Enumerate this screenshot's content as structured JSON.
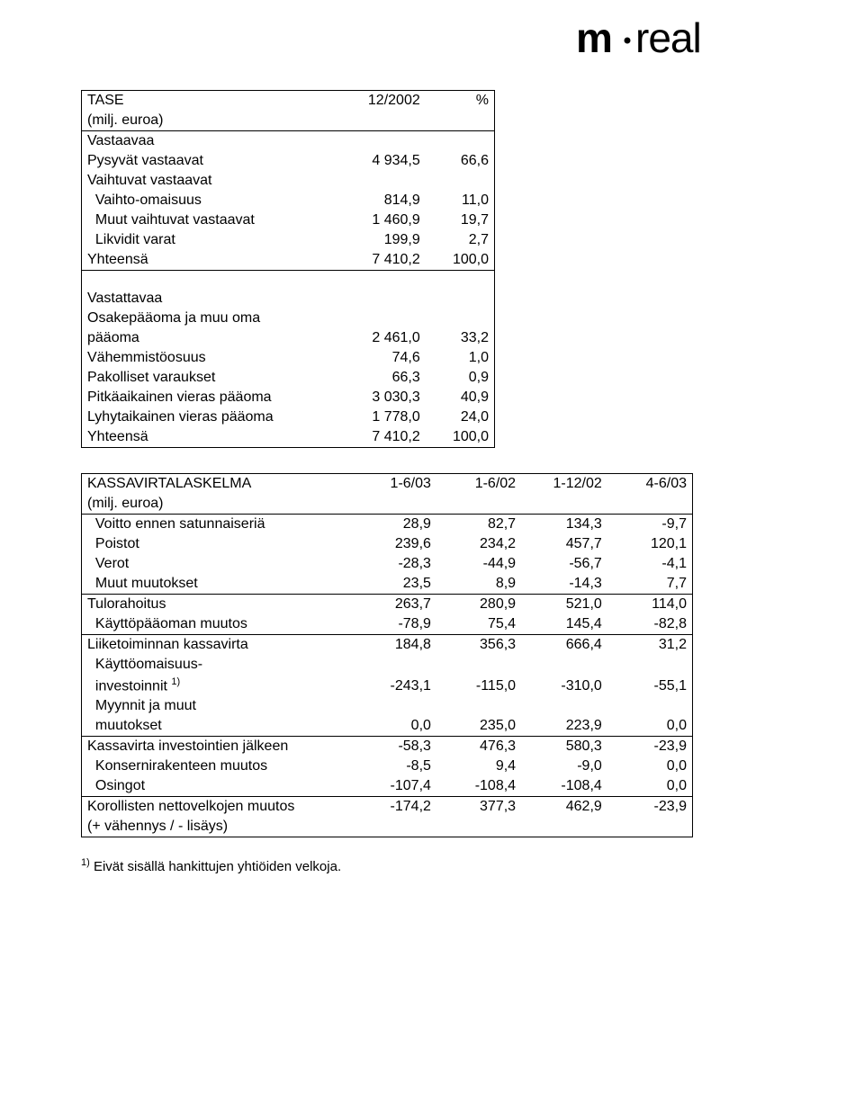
{
  "logo": {
    "text": "m·real"
  },
  "table1": {
    "header": {
      "title": "TASE",
      "subtitle": "(milj. euroa)",
      "c2": "12/2002",
      "c3": "%"
    },
    "sectionA": "Vastaavaa",
    "rowsA": [
      {
        "label": "Pysyvät vastaavat",
        "v1": "4 934,5",
        "v2": "66,6"
      },
      {
        "label": "Vaihtuvat vastaavat",
        "v1": "",
        "v2": ""
      },
      {
        "label": "  Vaihto-omaisuus",
        "v1": "814,9",
        "v2": "11,0"
      },
      {
        "label": "  Muut vaihtuvat vastaavat",
        "v1": "1 460,9",
        "v2": "19,7"
      },
      {
        "label": "  Likvidit varat",
        "v1": "199,9",
        "v2": "2,7"
      }
    ],
    "totalA": {
      "label": "Yhteensä",
      "v1": "7 410,2",
      "v2": "100,0"
    },
    "sectionB": "Vastattavaa",
    "rowsB": [
      {
        "label": "Osakepääoma ja muu oma",
        "v1": "",
        "v2": ""
      },
      {
        "label": "pääoma",
        "v1": "2 461,0",
        "v2": "33,2"
      },
      {
        "label": "Vähemmistöosuus",
        "v1": "74,6",
        "v2": "1,0"
      },
      {
        "label": "Pakolliset varaukset",
        "v1": "66,3",
        "v2": "0,9"
      },
      {
        "label": "Pitkäaikainen vieras pääoma",
        "v1": "3 030,3",
        "v2": "40,9"
      },
      {
        "label": "Lyhytaikainen vieras pääoma",
        "v1": "1 778,0",
        "v2": "24,0"
      }
    ],
    "totalB": {
      "label": "Yhteensä",
      "v1": "7 410,2",
      "v2": "100,0"
    }
  },
  "table2": {
    "header": {
      "title": "KASSAVIRTALASKELMA",
      "subtitle": "(milj. euroa)",
      "cols": [
        "1-6/03",
        "1-6/02",
        "1-12/02",
        "4-6/03"
      ]
    },
    "rows": [
      {
        "label": "  Voitto ennen satunnaiseriä",
        "v": [
          "28,9",
          "82,7",
          "134,3",
          "-9,7"
        ],
        "bt": false
      },
      {
        "label": "  Poistot",
        "v": [
          "239,6",
          "234,2",
          "457,7",
          "120,1"
        ],
        "bt": false
      },
      {
        "label": "  Verot",
        "v": [
          "-28,3",
          "-44,9",
          "-56,7",
          "-4,1"
        ],
        "bt": false
      },
      {
        "label": "  Muut muutokset",
        "v": [
          "23,5",
          "8,9",
          "-14,3",
          "7,7"
        ],
        "bt": false
      },
      {
        "label": "Tulorahoitus",
        "v": [
          "263,7",
          "280,9",
          "521,0",
          "114,0"
        ],
        "bt": true
      },
      {
        "label": "  Käyttöpääoman muutos",
        "v": [
          "-78,9",
          "75,4",
          "145,4",
          "-82,8"
        ],
        "bt": false
      },
      {
        "label": "Liiketoiminnan kassavirta",
        "v": [
          "184,8",
          "356,3",
          "666,4",
          "31,2"
        ],
        "bt": true
      },
      {
        "label": "  Käyttöomaisuus-",
        "v": [
          "",
          "",
          "",
          ""
        ],
        "bt": false
      },
      {
        "label_html": "  investoinnit <sup>1)</sup>",
        "v": [
          "-243,1",
          "-115,0",
          "-310,0",
          "-55,1"
        ],
        "bt": false
      },
      {
        "label": "  Myynnit ja muut",
        "v": [
          "",
          "",
          "",
          ""
        ],
        "bt": false
      },
      {
        "label": "  muutokset",
        "v": [
          "0,0",
          "235,0",
          "223,9",
          "0,0"
        ],
        "bt": false
      },
      {
        "label": "Kassavirta investointien jälkeen",
        "v": [
          "-58,3",
          "476,3",
          "580,3",
          "-23,9"
        ],
        "bt": true
      },
      {
        "label": "  Konsernirakenteen muutos",
        "v": [
          "-8,5",
          "9,4",
          "-9,0",
          "0,0"
        ],
        "bt": false
      },
      {
        "label": "  Osingot",
        "v": [
          "-107,4",
          "-108,4",
          "-108,4",
          "0,0"
        ],
        "bt": false
      },
      {
        "label": "Korollisten nettovelkojen muutos",
        "v": [
          "-174,2",
          "377,3",
          "462,9",
          "-23,9"
        ],
        "bt": true
      },
      {
        "label": "(+ vähennys / - lisäys)",
        "v": [
          "",
          "",
          "",
          ""
        ],
        "bt": false,
        "last": true
      }
    ]
  },
  "footnote_prefix": "1)",
  "footnote": "Eivät sisällä hankittujen yhtiöiden velkoja."
}
